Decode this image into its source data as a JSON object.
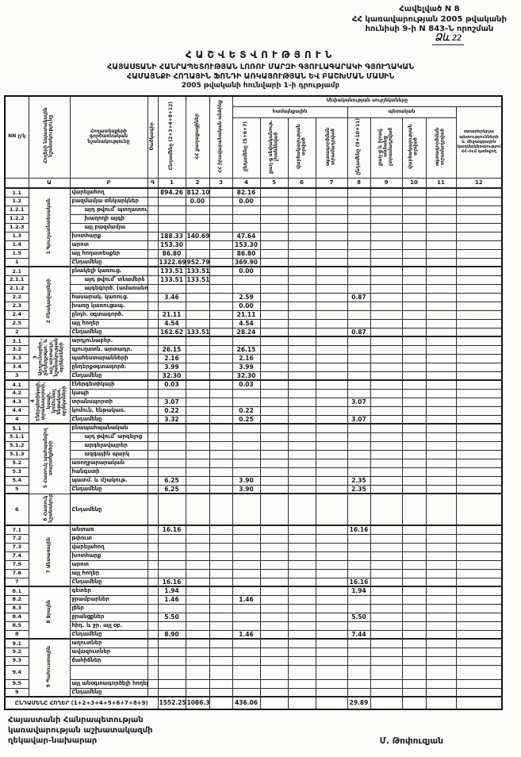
{
  "appendix": {
    "line1": "Հավելված N 8",
    "line2": "ՀՀ կառավարության 2005 թվականի",
    "line3": "հունիսի 9-ի N 843-Ն որոշման"
  },
  "form_note": "Ձև 22",
  "title": {
    "line1": "ՀԱՇՎԵՏՎՈՒԹՅՈՒՆ",
    "line2": "ՀԱՅԱՍՏԱՆԻ ՀԱՆՐԱՊԵՏՈՒԹՅԱՆ ԼՈՌՈՒ ՄԱՐԶԻ ԳՅՈՒԼԱԳԱՐԱԿԻ ԳՅՈՒՂԱԿԱՆ",
    "line3": "ՀԱՄԱՅՆՔԻ ՀՈՂԱՅԻՆ ՖՈՆԴԻ ԱՌԿԱՅՈՒԹՅԱՆ ԵՎ ԲԱՇԽՄԱՆ ՄԱՍԻՆ",
    "line4": "2005 թվականի հունվարի 1-ի դրությամբ"
  },
  "table": {
    "headers": {
      "nn": "NN ը/կ",
      "purpose": "Հողերի նպատակային նշանակությունը",
      "functional": "Հողատեսքերի գործառնական նշանակությունը",
      "code": "Ծածկագիր",
      "c1": "Ընդամենը (2+3+4+8+12)",
      "c2": "ՀՀ քաղաքացիներ",
      "c3": "ՀՀ իրավաբանական անձինք",
      "ownership": "Սեփականության սուբյեկտները",
      "community": "համայնքային",
      "state": "պետական",
      "c4": "ընդամենը (5+6+7)",
      "c5": "քաղ-ց սեփականութ. չհանձնված",
      "c6": "վարձակալության տրված",
      "c7": "օգտագործման տրամադրված",
      "c8": "ընդամենը (9+10+11)",
      "c9": "քաղ-ց և իրավ. անձանց չտրամադրված",
      "c10": "վարձակալության տրված",
      "c11": "օգտագործման տրամադրված",
      "c12": "օտարերկրյա պետությունների և միջազգային կազմակերպությունների ՀՀ-ում գտնվող"
    },
    "col_numbers": [
      "",
      "Ա",
      "Բ",
      "Գ",
      "1",
      "2",
      "3",
      "4",
      "5",
      "6",
      "7",
      "8",
      "9",
      "10",
      "11",
      "12"
    ],
    "sections": [
      {
        "name": "1 Գյուղատնտեսական",
        "rows": [
          {
            "num": "1.1",
            "label": "վարելահող",
            "v": {
              "c1": "894.26",
              "c2": "812.10",
              "c4": "82.16"
            }
          },
          {
            "num": "1.2",
            "label": "բազմամյա տնկարկներ",
            "v": {
              "c2": "0.00",
              "c4": "0.00"
            }
          },
          {
            "num": "1.2.1",
            "label": "այդ թվում՝ պտղատու այգի",
            "indent": true
          },
          {
            "num": "1.2.2",
            "label": "խաղողի այգի",
            "indent": true
          },
          {
            "num": "1.2.3",
            "label": "այլ բազմամյա",
            "indent": true
          },
          {
            "num": "1.3",
            "label": "խոտհարք",
            "v": {
              "c1": "188.33",
              "c2": "140.69",
              "c4": "47.64"
            }
          },
          {
            "num": "1.4",
            "label": "արոտ",
            "v": {
              "c1": "153.30",
              "c4": "153.30"
            }
          },
          {
            "num": "1.5",
            "label": "այլ հողատեսքեր",
            "v": {
              "c1": "86.80",
              "c4": "86.80"
            }
          },
          {
            "num": "1",
            "label": "Ընդամենը",
            "total": true,
            "v": {
              "c1": "1322.69",
              "c2": "952.79",
              "c4": "369.90"
            }
          }
        ]
      },
      {
        "name": "2 Բնակավայրերի",
        "rows": [
          {
            "num": "2.1",
            "label": "բնակելի կառուց.",
            "v": {
              "c1": "133.51",
              "c2": "133.51",
              "c4": "0.00"
            }
          },
          {
            "num": "2.1.1",
            "label": "այդ թվում՝ տնամերձ",
            "indent": true,
            "v": {
              "c1": "133.51",
              "c2": "133.51"
            }
          },
          {
            "num": "2.1.2",
            "label": "այգեգործ. (ամառանոց)",
            "indent": true
          },
          {
            "num": "2.2",
            "label": "հասարակ. կառուց.",
            "v": {
              "c1": "3.46",
              "c4": "2.59",
              "c8": "0.87"
            }
          },
          {
            "num": "2.3",
            "label": "խառը կառուցապ.",
            "v": {
              "c4": "0.00"
            }
          },
          {
            "num": "2.4",
            "label": "ընդհ. օգտագործ.",
            "v": {
              "c1": "21.11",
              "c4": "21.11"
            }
          },
          {
            "num": "2.5",
            "label": "այլ հողեր",
            "v": {
              "c1": "4.54",
              "c4": "4.54"
            }
          },
          {
            "num": "2",
            "label": "Ընդամենը",
            "total": true,
            "v": {
              "c1": "162.62",
              "c2": "133.51",
              "c4": "28.24",
              "c8": "0.87"
            }
          }
        ]
      },
      {
        "name": "3 Արդյունաբեր., ընդերքօգտ. և այլ արտադր. նշանակության օբյեկտների",
        "rows": [
          {
            "num": "3.1",
            "label": "արդյունաբեր."
          },
          {
            "num": "3.2",
            "label": "գյուղատն. արտադր.",
            "v": {
              "c1": "26.15",
              "c4": "26.15"
            }
          },
          {
            "num": "3.3",
            "label": "պահեստարանների",
            "v": {
              "c1": "2.16",
              "c4": "2.16"
            }
          },
          {
            "num": "3.4",
            "label": "ընդերքօգտագործ.",
            "v": {
              "c1": "3.99",
              "c4": "3.99"
            }
          },
          {
            "num": "3",
            "label": "Ընդամենը",
            "total": true,
            "v": {
              "c1": "32.30",
              "c4": "32.30"
            }
          }
        ]
      },
      {
        "name": "4 Էներգետիկայի, տրանսպորտի, կապի, կոմունալ ենթակառ. օբյեկտների",
        "rows": [
          {
            "num": "4.1",
            "label": "էներգետիկայի",
            "v": {
              "c1": "0.03",
              "c4": "0.03"
            }
          },
          {
            "num": "4.2",
            "label": "կապի"
          },
          {
            "num": "4.3",
            "label": "տրանսպորտի",
            "v": {
              "c1": "3.07",
              "c8": "3.07"
            }
          },
          {
            "num": "4.4",
            "label": "կոմուն. ենթակառ.",
            "v": {
              "c1": "0.22",
              "c4": "0.22"
            }
          },
          {
            "num": "4",
            "label": "Ընդամենը",
            "total": true,
            "v": {
              "c1": "3.32",
              "c4": "0.25",
              "c8": "3.07"
            }
          }
        ]
      },
      {
        "name": "5 Հատուկ պահպանվող տարածքների",
        "rows": [
          {
            "num": "5.1",
            "label": "բնապահպանական"
          },
          {
            "num": "5.1.1",
            "label": "այդ թվում՝ արգելոց",
            "indent": true
          },
          {
            "num": "5.1.2",
            "label": "արգելավայրեր",
            "indent": true
          },
          {
            "num": "5.1.3",
            "label": "ազգային պարկ",
            "indent": true
          },
          {
            "num": "5.2",
            "label": "առողջարարական"
          },
          {
            "num": "5.3",
            "label": "հանգստի"
          },
          {
            "num": "5.4",
            "label": "պատմ. և մշակութ.",
            "v": {
              "c1": "6.25",
              "c4": "3.90",
              "c8": "2.35"
            }
          },
          {
            "num": "5",
            "label": "Ընդամենը",
            "total": true,
            "v": {
              "c1": "6.25",
              "c4": "3.90",
              "c8": "2.35"
            }
          }
        ]
      },
      {
        "name": "6 Հատուկ նշանակության",
        "rows": [
          {
            "num": "6",
            "label": "Ընդամենը",
            "total": true,
            "tall": 40
          }
        ]
      },
      {
        "name": "7 Անտառային",
        "rows": [
          {
            "num": "7.1",
            "label": "անտառ",
            "v": {
              "c1": "16.16",
              "c8": "16.16"
            }
          },
          {
            "num": "7.2",
            "label": "թփուտ"
          },
          {
            "num": "7.3",
            "label": "վարելահող"
          },
          {
            "num": "7.4",
            "label": "խոտհարք"
          },
          {
            "num": "7.5",
            "label": "արոտ"
          },
          {
            "num": "7.6",
            "label": "այլ հողեր"
          },
          {
            "num": "7",
            "label": "Ընդամենը",
            "total": true,
            "v": {
              "c1": "16.16",
              "c8": "16.16"
            }
          }
        ]
      },
      {
        "name": "8 Ջրային",
        "rows": [
          {
            "num": "8.1",
            "label": "գետեր",
            "v": {
              "c1": "1.94",
              "c8": "1.94"
            }
          },
          {
            "num": "8.2",
            "label": "ջրամբարներ",
            "v": {
              "c1": "1.46",
              "c4": "1.46"
            }
          },
          {
            "num": "8.3",
            "label": "լճեր"
          },
          {
            "num": "8.4",
            "label": "ջրանցքներ",
            "v": {
              "c1": "5.50",
              "c8": "5.50"
            }
          },
          {
            "num": "8.5",
            "label": "հիդ. և ջր. այլ օբ."
          },
          {
            "num": "8",
            "label": "Ընդամենը",
            "total": true,
            "v": {
              "c1": "8.90",
              "c4": "1.46",
              "c8": "7.44"
            }
          }
        ]
      },
      {
        "name": "9 Պահուստային",
        "rows": [
          {
            "num": "9.1",
            "label": "աղուտներ"
          },
          {
            "num": "9.2",
            "label": "ավազուտներ"
          },
          {
            "num": "9.3",
            "label": "ճահիճներ"
          },
          {
            "num": "9.4",
            "label": "",
            "tall": 18
          },
          {
            "num": "9.5",
            "label": "այլ անօգտագործելի հողեր"
          },
          {
            "num": "9",
            "label": "Ընդամենը",
            "total": true
          }
        ]
      }
    ],
    "grand_total": {
      "label": "ԸՆԴԱՄԵՆԸ ՀՈՂԵՐ (1+2+3+4+5+6+7+8+9)",
      "v": {
        "c1": "1552.25",
        "c2": "1086.30",
        "c4": "436.06",
        "c8": "29.89"
      }
    }
  },
  "footer": {
    "left1": "Հայաստանի Հանրապետության",
    "left2": "կառավարության աշխատակազմի",
    "left3": "ղեկավար-նախարար",
    "signer": "Մ. Թոփուզյան"
  }
}
